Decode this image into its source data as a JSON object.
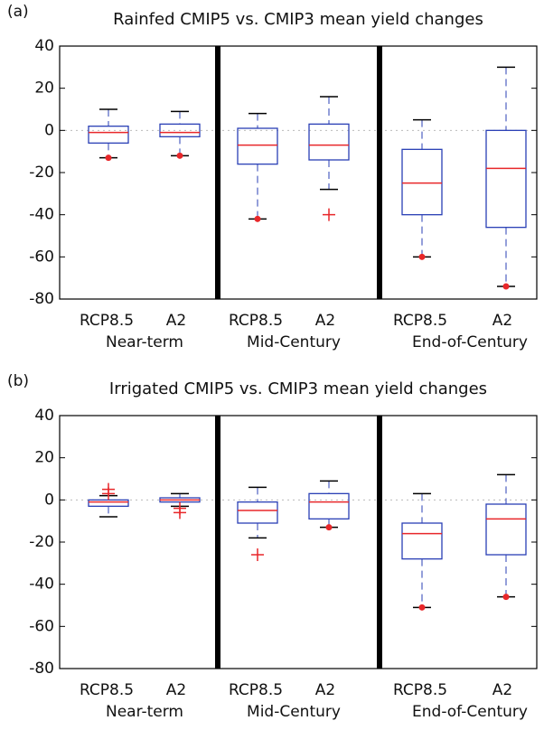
{
  "chart_data": [
    {
      "type": "box",
      "panel_label": "(a)",
      "title": "Rainfed CMIP5 vs. CMIP3 mean yield changes",
      "categories": [
        "RCP8.5",
        "A2",
        "RCP8.5",
        "A2",
        "RCP8.5",
        "A2"
      ],
      "groups": [
        "Near-term",
        "Mid-Century",
        "End-of-Century"
      ],
      "boxes": [
        {
          "whisker_low": -13,
          "q1": -6,
          "median": -1,
          "q3": 2,
          "whisker_high": 10,
          "outliers": [
            -13
          ]
        },
        {
          "whisker_low": -12,
          "q1": -3,
          "median": -1,
          "q3": 3,
          "whisker_high": 9,
          "outliers": [
            -12
          ]
        },
        {
          "whisker_low": -42,
          "q1": -16,
          "median": -7,
          "q3": 1,
          "whisker_high": 8,
          "outliers": [
            -42
          ]
        },
        {
          "whisker_low": -28,
          "q1": -14,
          "median": -7,
          "q3": 3,
          "whisker_high": 16,
          "outliers": [
            -40
          ]
        },
        {
          "whisker_low": -60,
          "q1": -40,
          "median": -25,
          "q3": -9,
          "whisker_high": 5,
          "outliers": [
            -60
          ]
        },
        {
          "whisker_low": -74,
          "q1": -46,
          "median": -18,
          "q3": 0,
          "whisker_high": 30,
          "outliers": [
            -74
          ]
        }
      ],
      "box_color": "#2a3fb5",
      "median_color": "#e8272a",
      "outlier_color": "#e8272a",
      "ylim": [
        -80,
        40
      ],
      "yticks": [
        -80,
        -60,
        -40,
        -20,
        0,
        20,
        40
      ]
    },
    {
      "type": "box",
      "panel_label": "(b)",
      "title": "Irrigated CMIP5 vs. CMIP3 mean yield changes",
      "categories": [
        "RCP8.5",
        "A2",
        "RCP8.5",
        "A2",
        "RCP8.5",
        "A2"
      ],
      "groups": [
        "Near-term",
        "Mid-Century",
        "End-of-Century"
      ],
      "boxes": [
        {
          "whisker_low": -8,
          "q1": -3,
          "median": -1,
          "q3": 0,
          "whisker_high": 2,
          "outliers": [
            5,
            3
          ]
        },
        {
          "whisker_low": -3,
          "q1": -1,
          "median": 0,
          "q3": 1,
          "whisker_high": 3,
          "outliers": [
            -4,
            -6
          ]
        },
        {
          "whisker_low": -18,
          "q1": -11,
          "median": -5,
          "q3": -1,
          "whisker_high": 6,
          "outliers": [
            -26
          ]
        },
        {
          "whisker_low": -13,
          "q1": -9,
          "median": -1,
          "q3": 3,
          "whisker_high": 9,
          "outliers": [
            -13
          ]
        },
        {
          "whisker_low": -51,
          "q1": -28,
          "median": -16,
          "q3": -11,
          "whisker_high": 3,
          "outliers": [
            -51
          ]
        },
        {
          "whisker_low": -46,
          "q1": -26,
          "median": -9,
          "q3": -2,
          "whisker_high": 12,
          "outliers": [
            -46
          ]
        }
      ],
      "box_color": "#2a3fb5",
      "median_color": "#e8272a",
      "outlier_color": "#e8272a",
      "ylim": [
        -80,
        40
      ],
      "yticks": [
        -80,
        -60,
        -40,
        -20,
        0,
        20,
        40
      ]
    }
  ]
}
